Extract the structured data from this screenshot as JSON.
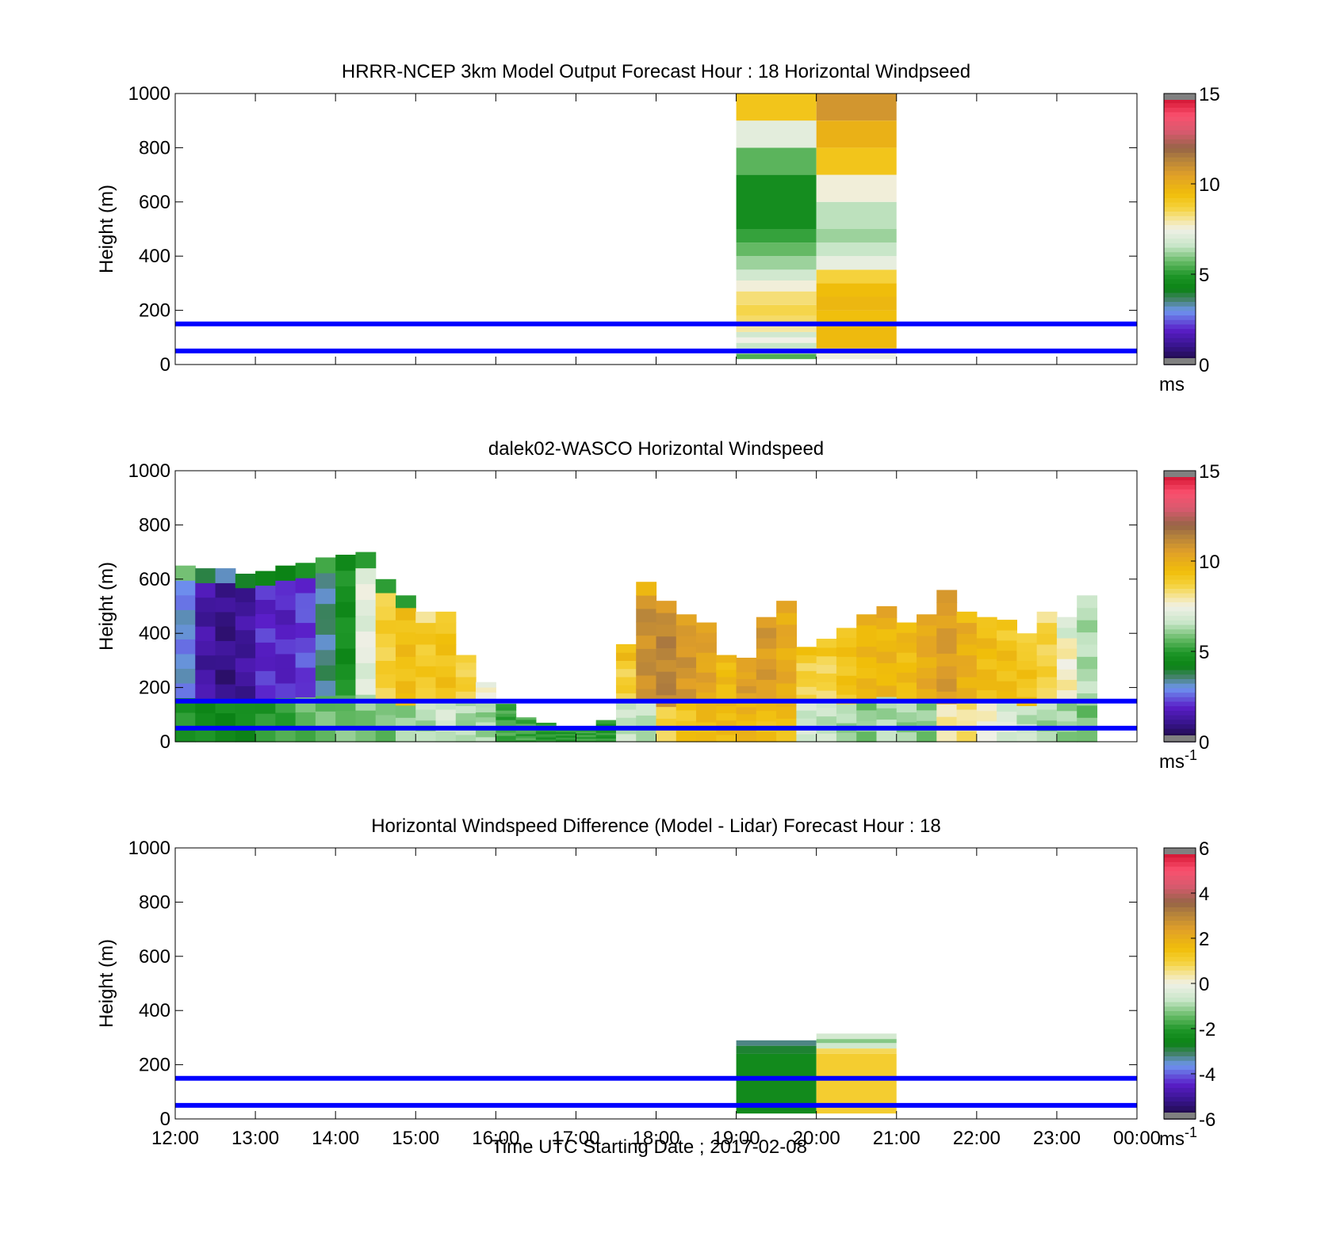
{
  "figure": {
    "xlabel": "Time UTC  Starting Date ; 2017-02-08",
    "x_ticks": [
      "12:00",
      "13:00",
      "14:00",
      "15:00",
      "16:00",
      "17:00",
      "18:00",
      "19:00",
      "20:00",
      "21:00",
      "22:00",
      "23:00",
      "00:00"
    ]
  },
  "chart_data": [
    {
      "type": "heatmap",
      "title": "HRRR-NCEP 3km Model Output   Forecast Hour : 18 Horizontal Windpseed",
      "ylabel": "Height (m)",
      "ylim": [
        0,
        1000
      ],
      "y_ticks": [
        "0",
        "200",
        "400",
        "600",
        "800",
        "1000"
      ],
      "x_range_hours": [
        12,
        24
      ],
      "colorbar": {
        "range": [
          0,
          15
        ],
        "ticks": [
          "0",
          "5",
          "10",
          "15"
        ],
        "unit": "ms",
        "unit_sup": ""
      },
      "reference_lines_m": [
        50,
        150
      ],
      "columns": [
        {
          "x_start": 19,
          "x_end": 20,
          "cells": [
            {
              "y0": 20,
              "y1": 40,
              "v": 5.5
            },
            {
              "y0": 40,
              "y1": 60,
              "v": 7.3
            },
            {
              "y0": 60,
              "y1": 80,
              "v": 6.6
            },
            {
              "y0": 80,
              "y1": 100,
              "v": 7.5
            },
            {
              "y0": 100,
              "y1": 120,
              "v": 6.8
            },
            {
              "y0": 120,
              "y1": 140,
              "v": 8.0
            },
            {
              "y0": 140,
              "y1": 180,
              "v": 8.4
            },
            {
              "y0": 180,
              "y1": 220,
              "v": 8.6
            },
            {
              "y0": 220,
              "y1": 270,
              "v": 8.3
            },
            {
              "y0": 270,
              "y1": 310,
              "v": 7.6
            },
            {
              "y0": 310,
              "y1": 350,
              "v": 6.8
            },
            {
              "y0": 350,
              "y1": 400,
              "v": 6.2
            },
            {
              "y0": 400,
              "y1": 450,
              "v": 5.7
            },
            {
              "y0": 450,
              "y1": 500,
              "v": 5.2
            },
            {
              "y0": 500,
              "y1": 700,
              "v": 4.6
            },
            {
              "y0": 700,
              "y1": 800,
              "v": 5.6
            },
            {
              "y0": 800,
              "y1": 900,
              "v": 7.2
            },
            {
              "y0": 900,
              "y1": 1000,
              "v": 9.2
            }
          ]
        },
        {
          "x_start": 20,
          "x_end": 21,
          "cells": [
            {
              "y0": 20,
              "y1": 40,
              "v": 7.4
            },
            {
              "y0": 40,
              "y1": 60,
              "v": 8.2
            },
            {
              "y0": 60,
              "y1": 150,
              "v": 9.6
            },
            {
              "y0": 150,
              "y1": 200,
              "v": 9.4
            },
            {
              "y0": 200,
              "y1": 250,
              "v": 9.7
            },
            {
              "y0": 250,
              "y1": 300,
              "v": 9.5
            },
            {
              "y0": 300,
              "y1": 350,
              "v": 8.7
            },
            {
              "y0": 350,
              "y1": 400,
              "v": 7.3
            },
            {
              "y0": 400,
              "y1": 450,
              "v": 6.6
            },
            {
              "y0": 450,
              "y1": 500,
              "v": 6.2
            },
            {
              "y0": 500,
              "y1": 600,
              "v": 6.5
            },
            {
              "y0": 600,
              "y1": 700,
              "v": 7.6
            },
            {
              "y0": 700,
              "y1": 800,
              "v": 9.2
            },
            {
              "y0": 800,
              "y1": 900,
              "v": 9.9
            },
            {
              "y0": 900,
              "y1": 1000,
              "v": 10.8
            }
          ]
        }
      ]
    },
    {
      "type": "heatmap",
      "title": "dalek02-WASCO  Horizontal Windspeed",
      "ylabel": "Height (m)",
      "ylim": [
        0,
        1000
      ],
      "y_ticks": [
        "0",
        "200",
        "400",
        "600",
        "800",
        "1000"
      ],
      "x_range_hours": [
        12,
        24
      ],
      "colorbar": {
        "range": [
          0,
          15
        ],
        "ticks": [
          "0",
          "5",
          "10",
          "15"
        ],
        "unit": "ms",
        "unit_sup": "-1"
      },
      "reference_lines_m": [
        50,
        150
      ],
      "columns": [
        {
          "x": 12.0,
          "top": 650,
          "mid": 3.0,
          "low": 4.8,
          "top_v": 5.5
        },
        {
          "x": 12.25,
          "top": 640,
          "mid": 1.4,
          "low": 4.6,
          "top_v": 4.0
        },
        {
          "x": 12.5,
          "top": 640,
          "mid": 1.0,
          "low": 4.5,
          "top_v": 3.5
        },
        {
          "x": 12.75,
          "top": 620,
          "mid": 1.3,
          "low": 4.5,
          "top_v": 3.8
        },
        {
          "x": 13.0,
          "top": 630,
          "mid": 2.0,
          "low": 5.0,
          "top_v": 4.2
        },
        {
          "x": 13.25,
          "top": 650,
          "mid": 1.9,
          "low": 5.3,
          "top_v": 4.6
        },
        {
          "x": 13.5,
          "top": 660,
          "mid": 2.3,
          "low": 5.6,
          "top_v": 4.8
        },
        {
          "x": 13.75,
          "top": 680,
          "mid": 3.5,
          "low": 5.7,
          "top_v": 5.0
        },
        {
          "x": 14.0,
          "top": 690,
          "mid": 4.7,
          "low": 5.8,
          "top_v": 4.6
        },
        {
          "x": 14.25,
          "top": 700,
          "mid": 7.2,
          "low": 6.0,
          "top_v": 5.3
        },
        {
          "x": 14.5,
          "top": 600,
          "mid": 8.8,
          "low": 5.8,
          "top_v": 4.8
        },
        {
          "x": 14.75,
          "top": 540,
          "mid": 9.4,
          "low": 6.2,
          "top_v": 5.0
        },
        {
          "x": 15.0,
          "top": 480,
          "mid": 9.0,
          "low": 6.4,
          "top_v": 8.4
        },
        {
          "x": 15.25,
          "top": 480,
          "mid": 9.3,
          "low": 6.8,
          "top_v": 8.8
        },
        {
          "x": 15.5,
          "top": 320,
          "mid": 8.8,
          "low": 6.3,
          "top_v": 8.5
        },
        {
          "x": 15.75,
          "top": 220,
          "mid": 7.8,
          "low": 6.2,
          "top_v": 7.5
        },
        {
          "x": 16.0,
          "top": 140,
          "mid": 6.0,
          "low": 5.3,
          "top_v": 5.5
        },
        {
          "x": 16.25,
          "top": 90,
          "mid": 5.8,
          "low": 5.3,
          "top_v": 5.0
        },
        {
          "x": 16.5,
          "top": 70,
          "mid": 5.2,
          "low": 5.0,
          "top_v": 5.0
        },
        {
          "x": 16.75,
          "top": 50,
          "mid": 5.0,
          "low": 5.0,
          "top_v": 5.0
        },
        {
          "x": 17.0,
          "top": 50,
          "mid": 5.4,
          "low": 5.2,
          "top_v": 5.0
        },
        {
          "x": 17.25,
          "top": 80,
          "mid": 5.0,
          "low": 5.0,
          "top_v": 5.0
        },
        {
          "x": 17.5,
          "top": 360,
          "mid": 8.8,
          "low": 6.6,
          "top_v": 9.5
        },
        {
          "x": 17.75,
          "top": 590,
          "mid": 11.0,
          "low": 6.5,
          "top_v": 9.8
        },
        {
          "x": 18.0,
          "top": 520,
          "mid": 11.3,
          "low": 8.6,
          "top_v": 10.2
        },
        {
          "x": 18.25,
          "top": 470,
          "mid": 10.8,
          "low": 9.2,
          "top_v": 10.4
        },
        {
          "x": 18.5,
          "top": 440,
          "mid": 10.3,
          "low": 9.6,
          "top_v": 10.6
        },
        {
          "x": 18.75,
          "top": 320,
          "mid": 9.5,
          "low": 9.6,
          "top_v": 9.6
        },
        {
          "x": 19.0,
          "top": 310,
          "mid": 10.5,
          "low": 9.7,
          "top_v": 10.2
        },
        {
          "x": 19.25,
          "top": 460,
          "mid": 10.6,
          "low": 9.4,
          "top_v": 10.8
        },
        {
          "x": 19.5,
          "top": 520,
          "mid": 10.1,
          "low": 9.4,
          "top_v": 10.4
        },
        {
          "x": 19.75,
          "top": 350,
          "mid": 8.7,
          "low": 6.8,
          "top_v": 9.1
        },
        {
          "x": 20.0,
          "top": 380,
          "mid": 8.6,
          "low": 6.6,
          "top_v": 9.0
        },
        {
          "x": 20.25,
          "top": 420,
          "mid": 9.2,
          "low": 6.3,
          "top_v": 9.3
        },
        {
          "x": 20.5,
          "top": 470,
          "mid": 9.6,
          "low": 6.0,
          "top_v": 9.8
        },
        {
          "x": 20.75,
          "top": 500,
          "mid": 9.7,
          "low": 6.4,
          "top_v": 10.3
        },
        {
          "x": 21.0,
          "top": 440,
          "mid": 9.5,
          "low": 6.2,
          "top_v": 9.7
        },
        {
          "x": 21.25,
          "top": 470,
          "mid": 10.1,
          "low": 6.0,
          "top_v": 10.3
        },
        {
          "x": 21.5,
          "top": 560,
          "mid": 10.6,
          "low": 7.9,
          "top_v": 10.4
        },
        {
          "x": 21.75,
          "top": 480,
          "mid": 10.0,
          "low": 8.2,
          "top_v": 9.5
        },
        {
          "x": 22.0,
          "top": 460,
          "mid": 9.5,
          "low": 7.6,
          "top_v": 9.4
        },
        {
          "x": 22.25,
          "top": 450,
          "mid": 9.4,
          "low": 7.0,
          "top_v": 9.0
        },
        {
          "x": 22.5,
          "top": 400,
          "mid": 9.2,
          "low": 6.6,
          "top_v": 8.6
        },
        {
          "x": 22.75,
          "top": 480,
          "mid": 8.7,
          "low": 6.3,
          "top_v": 8.4
        },
        {
          "x": 23.0,
          "top": 460,
          "mid": 7.8,
          "low": 6.2,
          "top_v": 7.0
        },
        {
          "x": 23.25,
          "top": 540,
          "mid": 6.4,
          "low": 5.8,
          "top_v": 6.4
        }
      ]
    },
    {
      "type": "heatmap",
      "title": "Horizontal Windspeed Difference (Model - Lidar) Forecast Hour : 18",
      "ylabel": "Height (m)",
      "ylim": [
        0,
        1000
      ],
      "y_ticks": [
        "0",
        "200",
        "400",
        "600",
        "800",
        "1000"
      ],
      "x_range_hours": [
        12,
        24
      ],
      "colorbar": {
        "range": [
          -6,
          6
        ],
        "ticks": [
          "-6",
          "-4",
          "-2",
          "0",
          "2",
          "4",
          "6"
        ],
        "unit": "ms",
        "unit_sup": "-1"
      },
      "reference_lines_m": [
        50,
        150
      ],
      "columns": [
        {
          "x_start": 19,
          "x_end": 20,
          "cells": [
            {
              "y0": 20,
              "y1": 240,
              "v": -2.4
            },
            {
              "y0": 240,
              "y1": 270,
              "v": -2.8
            },
            {
              "y0": 270,
              "y1": 290,
              "v": -3.2
            }
          ]
        },
        {
          "x_start": 20,
          "x_end": 21,
          "cells": [
            {
              "y0": 20,
              "y1": 240,
              "v": 1.1
            },
            {
              "y0": 240,
              "y1": 260,
              "v": 0.8
            },
            {
              "y0": 260,
              "y1": 280,
              "v": -0.6
            },
            {
              "y0": 280,
              "y1": 295,
              "v": -1.2
            },
            {
              "y0": 295,
              "y1": 315,
              "v": -0.5
            }
          ]
        }
      ]
    }
  ]
}
